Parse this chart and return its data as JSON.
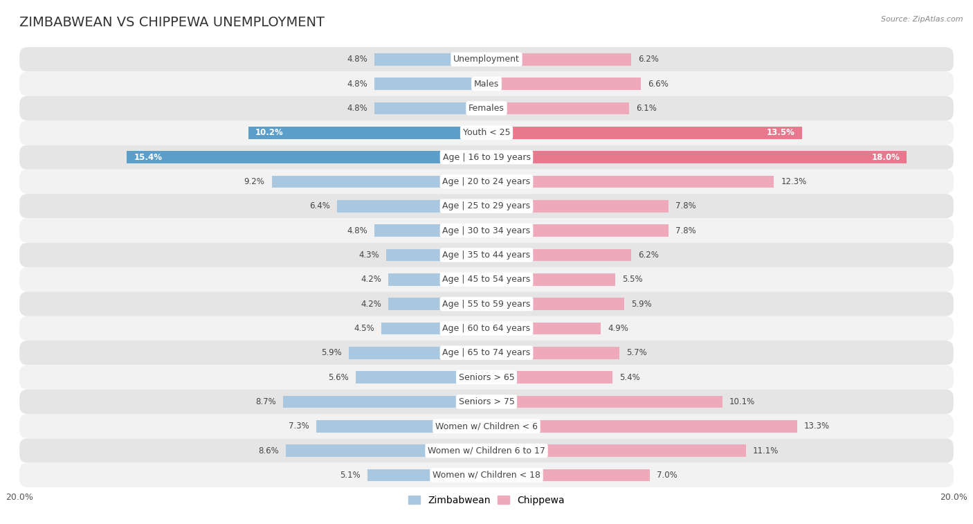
{
  "title": "ZIMBABWEAN VS CHIPPEWA UNEMPLOYMENT",
  "source": "Source: ZipAtlas.com",
  "categories": [
    "Unemployment",
    "Males",
    "Females",
    "Youth < 25",
    "Age | 16 to 19 years",
    "Age | 20 to 24 years",
    "Age | 25 to 29 years",
    "Age | 30 to 34 years",
    "Age | 35 to 44 years",
    "Age | 45 to 54 years",
    "Age | 55 to 59 years",
    "Age | 60 to 64 years",
    "Age | 65 to 74 years",
    "Seniors > 65",
    "Seniors > 75",
    "Women w/ Children < 6",
    "Women w/ Children 6 to 17",
    "Women w/ Children < 18"
  ],
  "zimbabwean": [
    4.8,
    4.8,
    4.8,
    10.2,
    15.4,
    9.2,
    6.4,
    4.8,
    4.3,
    4.2,
    4.2,
    4.5,
    5.9,
    5.6,
    8.7,
    7.3,
    8.6,
    5.1
  ],
  "chippewa": [
    6.2,
    6.6,
    6.1,
    13.5,
    18.0,
    12.3,
    7.8,
    7.8,
    6.2,
    5.5,
    5.9,
    4.9,
    5.7,
    5.4,
    10.1,
    13.3,
    11.1,
    7.0
  ],
  "zimbabwean_color": "#aac7e0",
  "chippewa_color": "#eeaabb",
  "highlight_zimbabwean_color": "#5b9ec9",
  "highlight_chippewa_color": "#e8788e",
  "highlight_rows": [
    3,
    4
  ],
  "row_bg_light": "#f2f2f2",
  "row_bg_dark": "#e5e5e5",
  "axis_limit": 20.0,
  "bar_height": 0.5,
  "title_fontsize": 14,
  "label_fontsize": 9,
  "value_fontsize": 8.5,
  "legend_fontsize": 10,
  "fig_bg": "#ffffff"
}
